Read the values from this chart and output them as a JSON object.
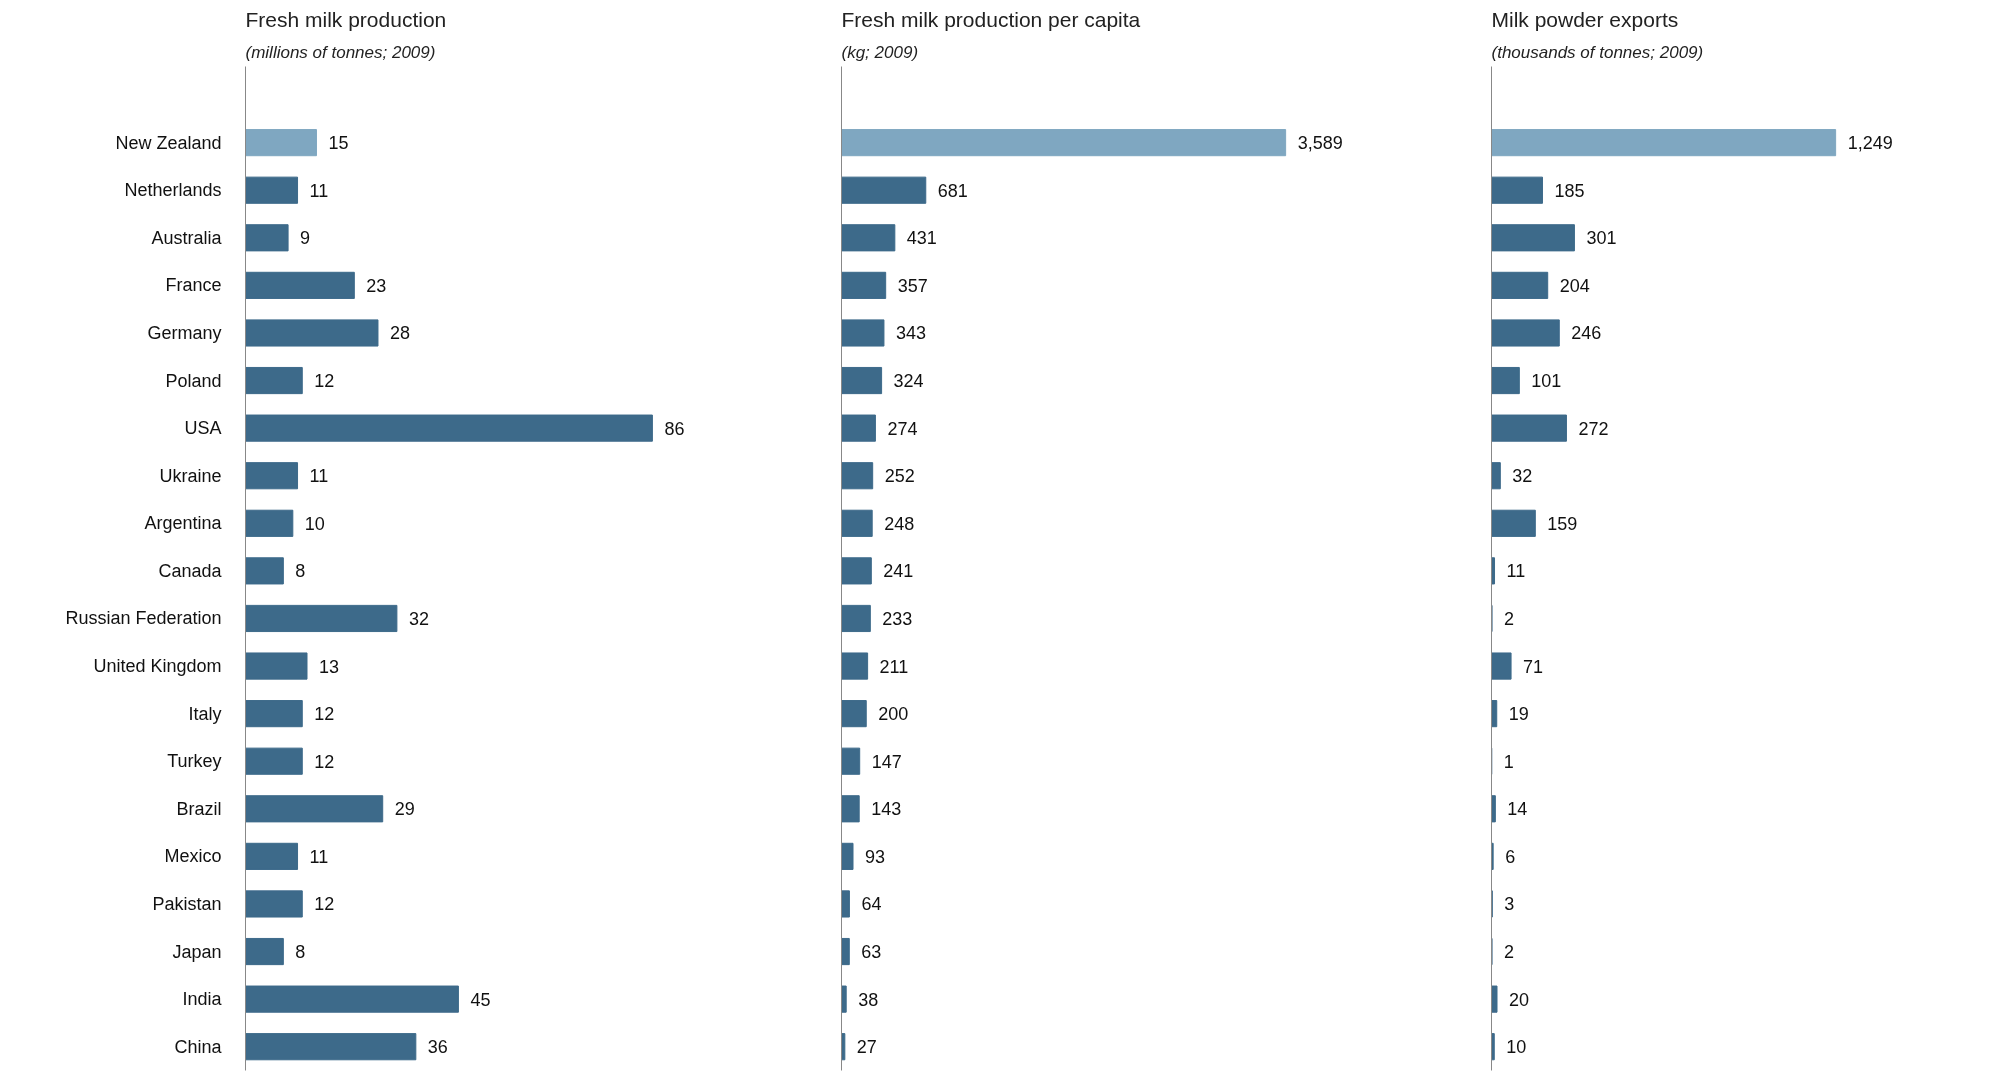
{
  "chart_data": [
    {
      "type": "bar",
      "orientation": "horizontal",
      "title": "Fresh milk production",
      "subtitle": "(millions of tonnes; 2009)",
      "categories": [
        "New Zealand",
        "Netherlands",
        "Australia",
        "France",
        "Germany",
        "Poland",
        "USA",
        "Ukraine",
        "Argentina",
        "Canada",
        "Russian Federation",
        "United Kingdom",
        "Italy",
        "Turkey",
        "Brazil",
        "Mexico",
        "Pakistan",
        "Japan",
        "India",
        "China"
      ],
      "values": [
        15,
        11,
        9,
        23,
        28,
        12,
        86,
        11,
        10,
        8,
        32,
        13,
        12,
        12,
        29,
        11,
        12,
        8,
        45,
        36
      ],
      "value_labels": [
        "15",
        "11",
        "9",
        "23",
        "28",
        "12",
        "86",
        "11",
        "10",
        "8",
        "32",
        "13",
        "12",
        "12",
        "29",
        "11",
        "12",
        "8",
        "45",
        "36"
      ],
      "colors": [
        "#7fa7c1",
        "#3d6a8a",
        "#3d6a8a",
        "#3d6a8a",
        "#3d6a8a",
        "#3d6a8a",
        "#3d6a8a",
        "#3d6a8a",
        "#3d6a8a",
        "#3d6a8a",
        "#3d6a8a",
        "#3d6a8a",
        "#3d6a8a",
        "#3d6a8a",
        "#3d6a8a",
        "#3d6a8a",
        "#3d6a8a",
        "#3d6a8a",
        "#3d6a8a",
        "#3d6a8a"
      ],
      "tick_labels": "y"
    },
    {
      "type": "bar",
      "orientation": "horizontal",
      "title": "Fresh milk production per capita",
      "subtitle": "(kg; 2009)",
      "categories": [
        null,
        null,
        null,
        null,
        null,
        null,
        null,
        null,
        null,
        null,
        null,
        null,
        null,
        null,
        null,
        null,
        null,
        null,
        null,
        null
      ],
      "values": [
        3589,
        681,
        431,
        357,
        343,
        324,
        274,
        252,
        248,
        241,
        233,
        211,
        200,
        147,
        143,
        93,
        64,
        63,
        38,
        27
      ],
      "value_labels": [
        "3,589",
        "681",
        "431",
        "357",
        "343",
        "324",
        "274",
        "252",
        "248",
        "241",
        "233",
        "211",
        "200",
        "147",
        "143",
        "93",
        "64",
        "63",
        "38",
        "27"
      ],
      "colors": [
        "#7fa7c1",
        "#3d6a8a",
        "#3d6a8a",
        "#3d6a8a",
        "#3d6a8a",
        "#3d6a8a",
        "#3d6a8a",
        "#3d6a8a",
        "#3d6a8a",
        "#3d6a8a",
        "#3d6a8a",
        "#3d6a8a",
        "#3d6a8a",
        "#3d6a8a",
        "#3d6a8a",
        "#3d6a8a",
        "#3d6a8a",
        "#3d6a8a",
        "#3d6a8a",
        "#3d6a8a"
      ],
      "tick_labels": false
    },
    {
      "type": "bar",
      "orientation": "horizontal",
      "title": "Milk powder exports",
      "subtitle": "(thousands of tonnes; 2009)",
      "categories": [
        null,
        null,
        null,
        null,
        null,
        null,
        null,
        null,
        null,
        null,
        null,
        null,
        null,
        null,
        null,
        null,
        null,
        null,
        null,
        null
      ],
      "values": [
        1249,
        185,
        301,
        204,
        246,
        101,
        272,
        32,
        159,
        11,
        2,
        71,
        19,
        1,
        14,
        6,
        3,
        2,
        20,
        10
      ],
      "value_labels": [
        "1,249",
        "185",
        "301",
        "204",
        "246",
        "101",
        "272",
        "32",
        "159",
        "11",
        "2",
        "71",
        "19",
        "1",
        "14",
        "6",
        "3",
        "2",
        "20",
        "10"
      ],
      "colors": [
        "#7fa7c1",
        "#3d6a8a",
        "#3d6a8a",
        "#3d6a8a",
        "#3d6a8a",
        "#3d6a8a",
        "#3d6a8a",
        "#3d6a8a",
        "#3d6a8a",
        "#3d6a8a",
        "#3d6a8a",
        "#3d6a8a",
        "#3d6a8a",
        "#3d6a8a",
        "#3d6a8a",
        "#3d6a8a",
        "#3d6a8a",
        "#3d6a8a",
        "#3d6a8a",
        "#3d6a8a"
      ],
      "tick_labels": false
    }
  ]
}
